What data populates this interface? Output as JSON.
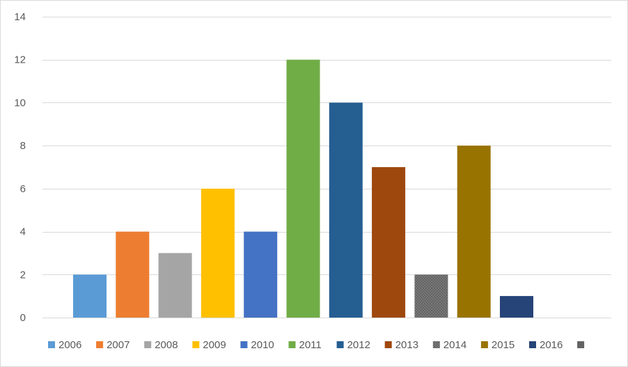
{
  "chart_data": {
    "type": "bar",
    "title": "",
    "xlabel": "",
    "ylabel": "",
    "ylim": [
      0,
      14
    ],
    "yticks": [
      0,
      2,
      4,
      6,
      8,
      10,
      12,
      14
    ],
    "grid": true,
    "legend_position": "bottom",
    "series": [
      {
        "name": "2006",
        "value": 2,
        "color": "#5b9bd5"
      },
      {
        "name": "2007",
        "value": 4,
        "color": "#ed7d31"
      },
      {
        "name": "2008",
        "value": 3,
        "color": "#a5a5a5"
      },
      {
        "name": "2009",
        "value": 6,
        "color": "#ffc000"
      },
      {
        "name": "2010",
        "value": 4,
        "color": "#4472c4"
      },
      {
        "name": "2011",
        "value": 12,
        "color": "#70ad47"
      },
      {
        "name": "2012",
        "value": 10,
        "color": "#255e91"
      },
      {
        "name": "2013",
        "value": 7,
        "color": "#9e480e"
      },
      {
        "name": "2014",
        "value": 2,
        "color": "#636363",
        "pattern": "dotted"
      },
      {
        "name": "2015",
        "value": 8,
        "color": "#997300"
      },
      {
        "name": "2016",
        "value": 1,
        "color": "#264478"
      },
      {
        "name": "",
        "value": 0,
        "color": "#636363"
      }
    ]
  }
}
